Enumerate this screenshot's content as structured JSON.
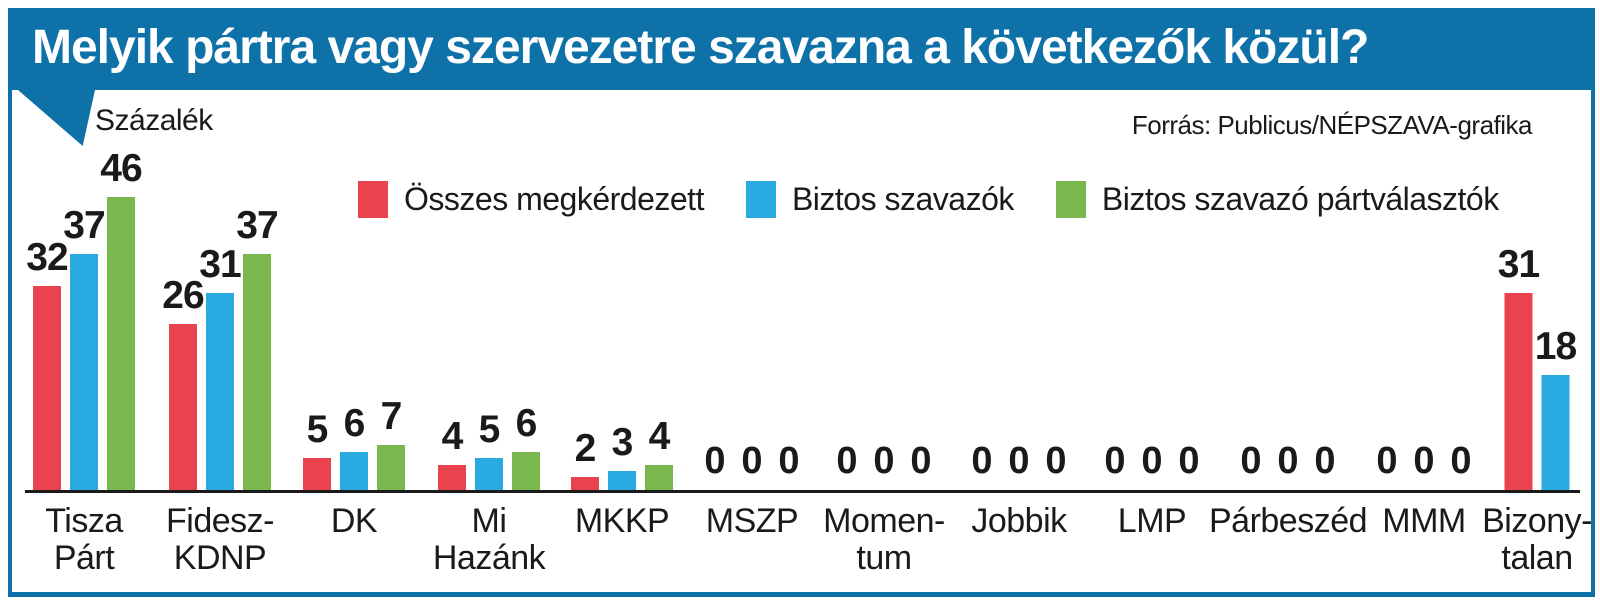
{
  "window": {
    "title": "Melyik pártra vagy szervezetre szavazna a következők közül?"
  },
  "header": {
    "y_axis_label": "Százalék",
    "source": "Forrás: Publicus/NÉPSZAVA-grafika"
  },
  "legend": {
    "items": [
      {
        "label": "Összes megkérdezett",
        "color": "#e9434f"
      },
      {
        "label": "Biztos szavazók",
        "color": "#29abe2"
      },
      {
        "label": "Biztos szavazó pártválasztók",
        "color": "#7ab74f"
      }
    ]
  },
  "colors": {
    "accent_blue": "#0e71a8",
    "series_red": "#e9434f",
    "series_blue": "#29abe2",
    "series_green": "#7ab74f",
    "axis": "#1a1a1a"
  },
  "chart_data": {
    "type": "bar",
    "title": "Melyik pártra vagy szervezetre szavazna a következők közül?",
    "ylabel": "Százalék",
    "ylim": [
      0,
      50
    ],
    "grid": false,
    "legend_position": "top-center",
    "value_labels": true,
    "categories": [
      "Tisza Párt",
      "Fidesz-KDNP",
      "DK",
      "Mi Hazánk",
      "MKKP",
      "MSZP",
      "Momentum",
      "Jobbik",
      "LMP",
      "Párbeszéd",
      "MMM",
      "Bizonytalan"
    ],
    "category_label_lines": [
      [
        "Tisza",
        "Párt"
      ],
      [
        "Fidesz-",
        "KDNP"
      ],
      [
        "DK"
      ],
      [
        "Mi",
        "Hazánk"
      ],
      [
        "MKKP"
      ],
      [
        "MSZP"
      ],
      [
        "Momen-",
        "tum"
      ],
      [
        "Jobbik"
      ],
      [
        "LMP"
      ],
      [
        "Párbeszéd"
      ],
      [
        "MMM"
      ],
      [
        "Bizony-",
        "talan"
      ]
    ],
    "series": [
      {
        "name": "Összes megkérdezett",
        "color": "#e9434f",
        "values": [
          32,
          26,
          5,
          4,
          2,
          0,
          0,
          0,
          0,
          0,
          0,
          31
        ]
      },
      {
        "name": "Biztos szavazók",
        "color": "#29abe2",
        "values": [
          37,
          31,
          6,
          5,
          3,
          0,
          0,
          0,
          0,
          0,
          0,
          18
        ]
      },
      {
        "name": "Biztos szavazó pártválasztók",
        "color": "#7ab74f",
        "values": [
          46,
          37,
          7,
          6,
          4,
          0,
          0,
          0,
          0,
          0,
          0,
          null
        ]
      }
    ],
    "source": "Forrás: Publicus/NÉPSZAVA-grafika"
  }
}
